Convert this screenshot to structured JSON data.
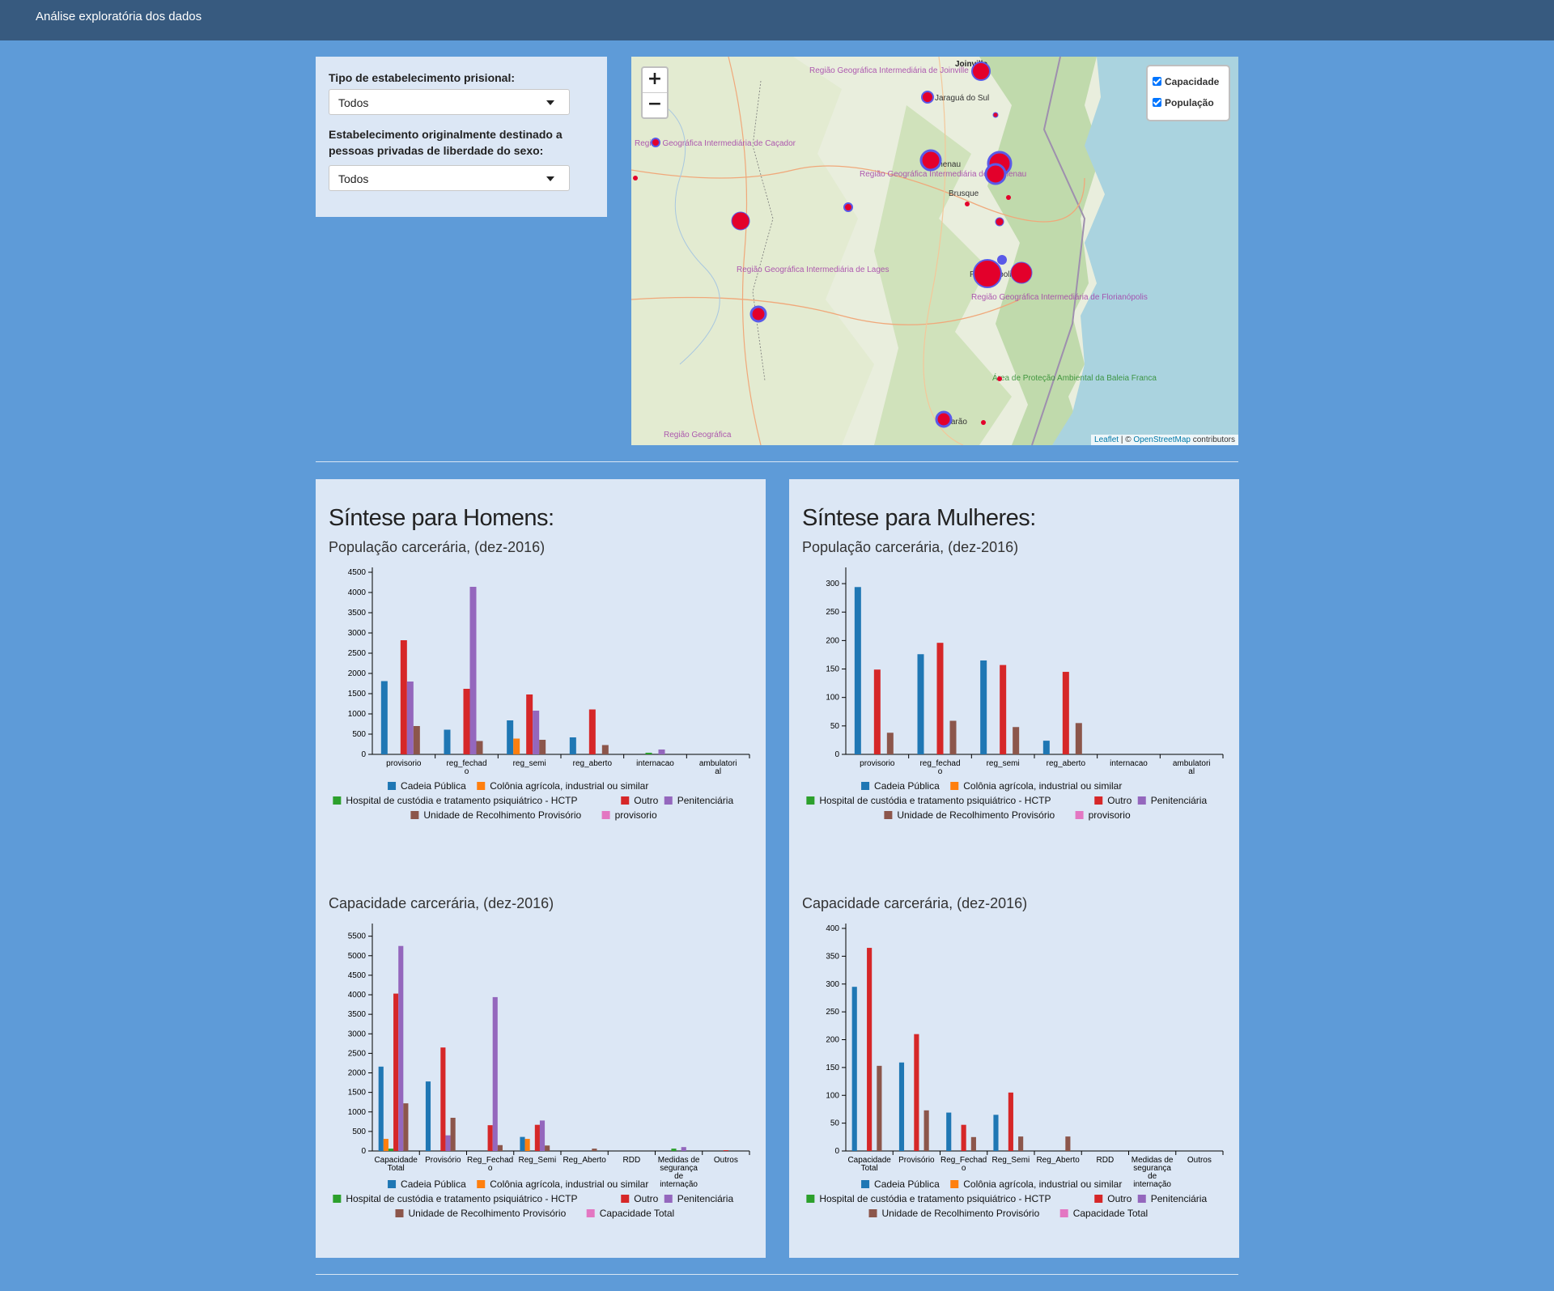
{
  "app": {
    "title": "Análise exploratória dos dados"
  },
  "filters": {
    "tipo_label": "Tipo de estabelecimento prisional:",
    "tipo_value": "Todos",
    "sexo_label": "Estabelecimento originalmente destinado a pessoas privadas de liberdade do sexo:",
    "sexo_value": "Todos"
  },
  "map": {
    "zoom_in": "+",
    "zoom_out": "−",
    "layer_capacidade": "Capacidade",
    "layer_populacao": "População",
    "attribution_leaflet": "Leaflet",
    "attribution_sep": " | © ",
    "attribution_osm": "OpenStreetMap",
    "attribution_tail": " contributors",
    "place_labels": [
      "Joinville",
      "Jaraguá do Sul",
      "Blumenau",
      "Brusque",
      "Florianópolis",
      "Tubarão",
      "Região Geográfica Intermediária de Joinville",
      "Região Geográfica Intermediária de Caçador",
      "Região Geográfica Intermediária de Blumenau",
      "Região Geográfica Intermediária de Lages",
      "Região Geográfica Intermediária de Florianópolis",
      "Área de Proteção Ambiental da Baleia Franca",
      "Região Geográfica"
    ]
  },
  "colors": {
    "Cadeia Pública": "#1f77b4",
    "Colônia agrícola, industrial ou similar": "#ff7f0e",
    "Hospital de custódia e tratamento psiquiátrico - HCTP": "#2ca02c",
    "Outro": "#d62728",
    "Penitenciária": "#9467bd",
    "Unidade de Recolhimento Provisório": "#8c564b",
    "provisorio": "#e377c2",
    "Capacidade Total": "#e377c2"
  },
  "homens": {
    "title": "Síntese para Homens:",
    "pop_title": "População carcerária, (dez-2016)",
    "cap_title": "Capacidade carcerária, (dez-2016)"
  },
  "mulheres": {
    "title": "Síntese para Mulheres:",
    "pop_title": "População carcerária, (dez-2016)",
    "cap_title": "Capacidade carcerária, (dez-2016)"
  },
  "chart_data": [
    {
      "id": "homens_pop",
      "type": "bar",
      "title": "População carcerária, (dez-2016)",
      "categories": [
        "provisorio",
        "reg_fechado",
        "reg_semi",
        "reg_aberto",
        "internacao",
        "ambulatorial"
      ],
      "ylim": [
        0,
        4500
      ],
      "yticks": [
        0,
        500,
        1000,
        1500,
        2000,
        2500,
        3000,
        3500,
        4000,
        4500
      ],
      "series": [
        {
          "name": "Cadeia Pública",
          "values": [
            1810,
            610,
            840,
            420,
            0,
            0
          ]
        },
        {
          "name": "Colônia agrícola, industrial ou similar",
          "values": [
            0,
            0,
            390,
            0,
            0,
            0
          ]
        },
        {
          "name": "Hospital de custódia e tratamento psiquiátrico - HCTP",
          "values": [
            0,
            0,
            0,
            0,
            40,
            0
          ]
        },
        {
          "name": "Outro",
          "values": [
            2820,
            1620,
            1480,
            1110,
            0,
            0
          ]
        },
        {
          "name": "Penitenciária",
          "values": [
            1800,
            4140,
            1080,
            0,
            120,
            0
          ]
        },
        {
          "name": "Unidade de Recolhimento Provisório",
          "values": [
            700,
            330,
            360,
            230,
            0,
            0
          ]
        },
        {
          "name": "provisorio",
          "values": [
            0,
            0,
            0,
            0,
            0,
            0
          ]
        }
      ]
    },
    {
      "id": "homens_cap",
      "type": "bar",
      "title": "Capacidade carcerária, (dez-2016)",
      "categories": [
        "Capacidade Total",
        "Provisório",
        "Reg_Fechado",
        "Reg_Semi",
        "Reg_Aberto",
        "RDD",
        "Medidas de segurança de internação",
        "Outros"
      ],
      "ylim": [
        0,
        5700
      ],
      "yticks": [
        0,
        500,
        1000,
        1500,
        2000,
        2500,
        3000,
        3500,
        4000,
        4500,
        5000,
        5500
      ],
      "series": [
        {
          "name": "Cadeia Pública",
          "values": [
            2160,
            1780,
            0,
            360,
            0,
            0,
            0,
            0
          ]
        },
        {
          "name": "Colônia agrícola, industrial ou similar",
          "values": [
            310,
            0,
            0,
            310,
            0,
            0,
            0,
            0
          ]
        },
        {
          "name": "Hospital de custódia e tratamento psiquiátrico - HCTP",
          "values": [
            60,
            0,
            0,
            0,
            0,
            0,
            60,
            0
          ]
        },
        {
          "name": "Outro",
          "values": [
            4030,
            2650,
            660,
            670,
            0,
            0,
            0,
            20
          ]
        },
        {
          "name": "Penitenciária",
          "values": [
            5250,
            400,
            3940,
            780,
            0,
            0,
            100,
            0
          ]
        },
        {
          "name": "Unidade de Recolhimento Provisório",
          "values": [
            1220,
            850,
            150,
            140,
            60,
            0,
            0,
            0
          ]
        },
        {
          "name": "Capacidade Total",
          "values": [
            0,
            0,
            0,
            0,
            0,
            0,
            0,
            0
          ]
        }
      ]
    },
    {
      "id": "mulheres_pop",
      "type": "bar",
      "title": "População carcerária, (dez-2016)",
      "categories": [
        "provisorio",
        "reg_fechado",
        "reg_semi",
        "reg_aberto",
        "internacao",
        "ambulatorial"
      ],
      "ylim": [
        0,
        320
      ],
      "yticks": [
        0,
        50,
        100,
        150,
        200,
        250,
        300
      ],
      "series": [
        {
          "name": "Cadeia Pública",
          "values": [
            294,
            176,
            165,
            24,
            0,
            0
          ]
        },
        {
          "name": "Colônia agrícola, industrial ou similar",
          "values": [
            0,
            0,
            0,
            0,
            0,
            0
          ]
        },
        {
          "name": "Hospital de custódia e tratamento psiquiátrico - HCTP",
          "values": [
            0,
            0,
            0,
            0,
            0,
            0
          ]
        },
        {
          "name": "Outro",
          "values": [
            149,
            196,
            157,
            145,
            0,
            0
          ]
        },
        {
          "name": "Penitenciária",
          "values": [
            0,
            0,
            0,
            0,
            0,
            0
          ]
        },
        {
          "name": "Unidade de Recolhimento Provisório",
          "values": [
            38,
            59,
            48,
            55,
            0,
            0
          ]
        },
        {
          "name": "provisorio",
          "values": [
            0,
            0,
            0,
            0,
            0,
            0
          ]
        }
      ]
    },
    {
      "id": "mulheres_cap",
      "type": "bar",
      "title": "Capacidade carcerária, (dez-2016)",
      "categories": [
        "Capacidade Total",
        "Provisório",
        "Reg_Fechado",
        "Reg_Semi",
        "Reg_Aberto",
        "RDD",
        "Medidas de segurança de internação",
        "Outros"
      ],
      "ylim": [
        0,
        400
      ],
      "yticks": [
        0,
        50,
        100,
        150,
        200,
        250,
        300,
        350,
        400
      ],
      "series": [
        {
          "name": "Cadeia Pública",
          "values": [
            295,
            159,
            69,
            65,
            0,
            0,
            0,
            0
          ]
        },
        {
          "name": "Colônia agrícola, industrial ou similar",
          "values": [
            0,
            0,
            0,
            0,
            0,
            0,
            0,
            0
          ]
        },
        {
          "name": "Hospital de custódia e tratamento psiquiátrico - HCTP",
          "values": [
            0,
            0,
            0,
            0,
            0,
            0,
            0,
            0
          ]
        },
        {
          "name": "Outro",
          "values": [
            365,
            210,
            47,
            105,
            0,
            0,
            0,
            0
          ]
        },
        {
          "name": "Penitenciária",
          "values": [
            0,
            0,
            0,
            0,
            0,
            0,
            0,
            0
          ]
        },
        {
          "name": "Unidade de Recolhimento Provisório",
          "values": [
            153,
            73,
            25,
            26,
            26,
            0,
            0,
            0
          ]
        },
        {
          "name": "Capacidade Total",
          "values": [
            0,
            0,
            0,
            0,
            0,
            0,
            0,
            0
          ]
        }
      ]
    }
  ]
}
